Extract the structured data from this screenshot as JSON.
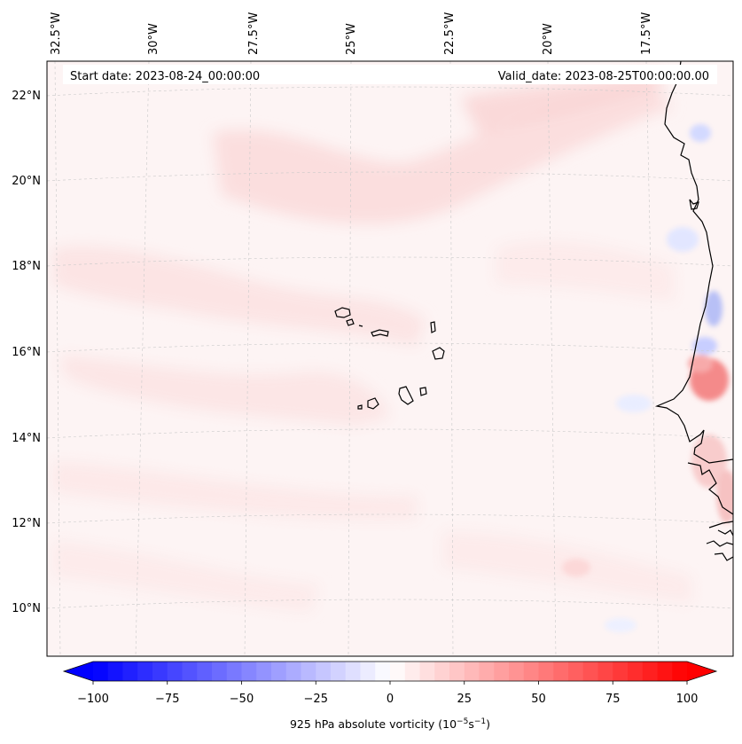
{
  "map": {
    "top_lon_labels": [
      "32.5°W",
      "30°W",
      "27.5°W",
      "25°W",
      "22.5°W",
      "20°W",
      "17.5°W"
    ],
    "left_lat_labels": [
      "22°N",
      "20°N",
      "18°N",
      "16°N",
      "14°N",
      "12°N",
      "10°N"
    ],
    "start_date_text": "Start date: 2023-08-24_00:00:00",
    "valid_date_text": "Valid_date: 2023-08-25T00:00:00.00",
    "gridlines": true,
    "land_outline_color": "#000000"
  },
  "colorbar": {
    "label_prefix": "925 hPa absolute vorticity (10",
    "label_exp1": "−5",
    "label_mid": "s",
    "label_exp2": "−1",
    "label_suffix": ")",
    "ticks": [
      "−100",
      "−75",
      "−50",
      "−25",
      "0",
      "25",
      "50",
      "75",
      "100"
    ],
    "range": [
      -100,
      100
    ],
    "step": 5,
    "extend": "both",
    "cmap": "bwr",
    "colors": {
      "negative": "#0000ff",
      "neutral": "#ffffff",
      "positive": "#ff0000"
    }
  }
}
